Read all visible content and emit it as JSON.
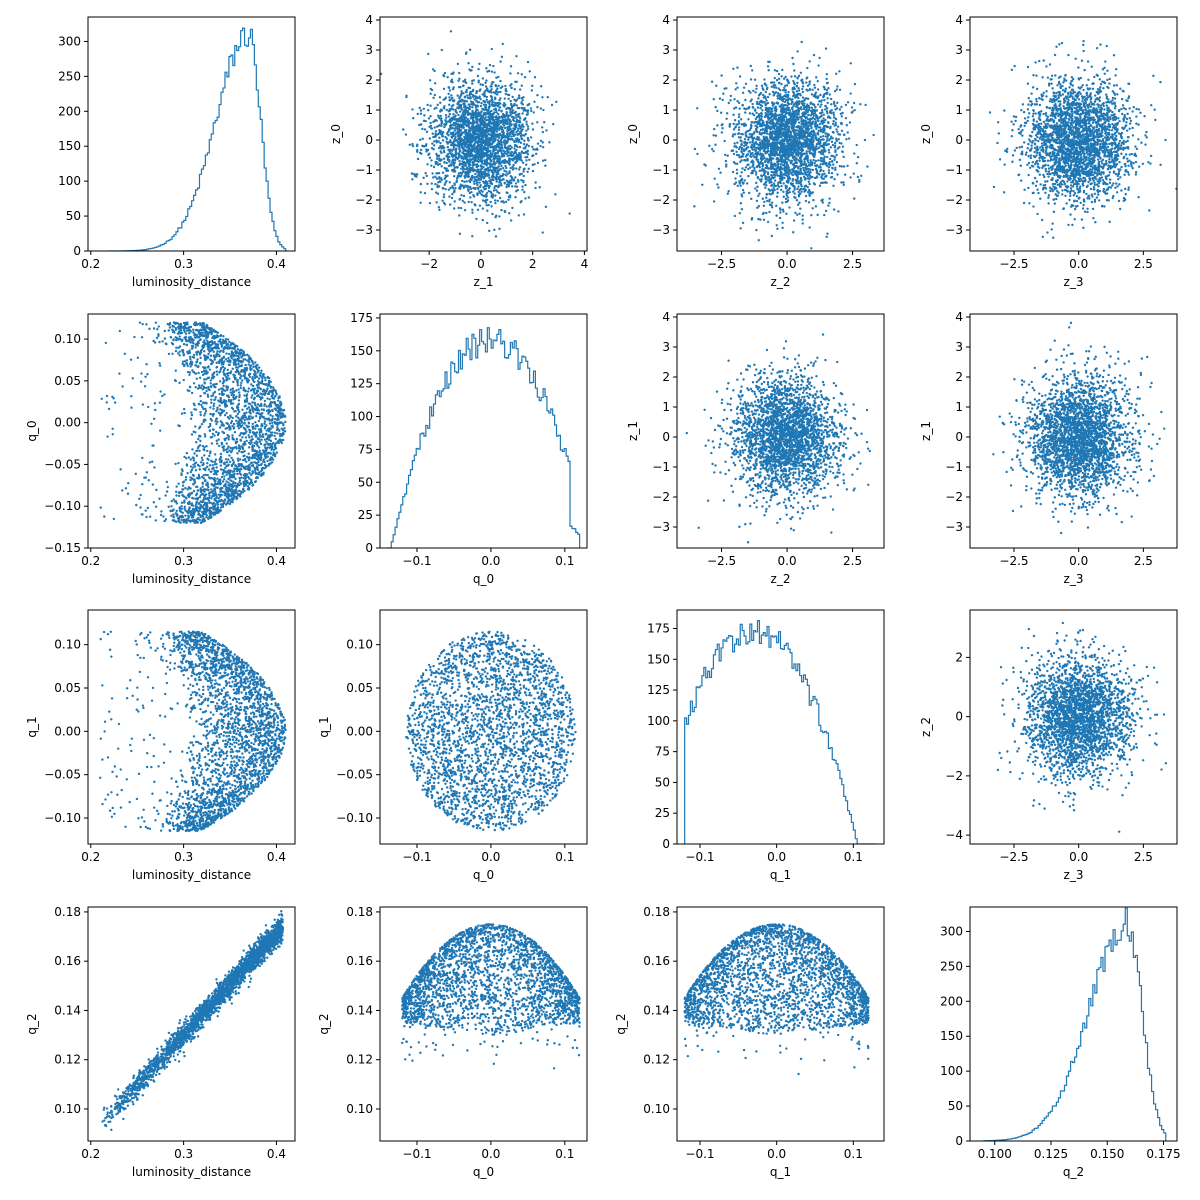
{
  "figure": {
    "color": "#1f77b4",
    "axes_color": "#000000",
    "background": "#ffffff"
  },
  "chart_data": [
    {
      "row": 0,
      "col": 0,
      "type": "histogram",
      "xlabel": "luminosity_distance",
      "ylabel": "",
      "xlim": [
        0.197,
        0.42
      ],
      "ylim": [
        0,
        335
      ],
      "xticks": [
        0.2,
        0.3,
        0.4
      ],
      "xtick_labels": [
        "0.2",
        "0.3",
        "0.4"
      ],
      "yticks": [
        0,
        50,
        100,
        150,
        200,
        250,
        300
      ],
      "ytick_labels": [
        "0",
        "50",
        "100",
        "150",
        "200",
        "250",
        "300"
      ],
      "dist": {
        "kind": "skew",
        "center": 0.37,
        "left_sd": 0.035,
        "right_sd": 0.013,
        "min": 0.22,
        "max": 0.41,
        "peak": 310,
        "bins": 90
      }
    },
    {
      "row": 0,
      "col": 1,
      "type": "scatter",
      "xlabel": "z_1",
      "ylabel": "z_0",
      "xlim": [
        -3.9,
        4.1
      ],
      "ylim": [
        -3.7,
        4.1
      ],
      "xticks": [
        -2,
        0,
        2,
        4
      ],
      "xtick_labels": [
        "−2",
        "0",
        "2",
        "4"
      ],
      "yticks": [
        -3,
        -2,
        -1,
        0,
        1,
        2,
        3,
        4
      ],
      "ytick_labels": [
        "−3",
        "−2",
        "−1",
        "0",
        "1",
        "2",
        "3",
        "4"
      ],
      "dist": {
        "kind": "gauss2d",
        "sx": 1,
        "sy": 1
      }
    },
    {
      "row": 0,
      "col": 2,
      "type": "scatter",
      "xlabel": "z_2",
      "ylabel": "z_0",
      "xlim": [
        -4.2,
        3.7
      ],
      "ylim": [
        -3.7,
        4.1
      ],
      "xticks": [
        -2.5,
        0,
        2.5
      ],
      "xtick_labels": [
        "−2.5",
        "0.0",
        "2.5"
      ],
      "yticks": [
        -3,
        -2,
        -1,
        0,
        1,
        2,
        3,
        4
      ],
      "ytick_labels": [
        "−3",
        "−2",
        "−1",
        "0",
        "1",
        "2",
        "3",
        "4"
      ],
      "dist": {
        "kind": "gauss2d",
        "sx": 1,
        "sy": 1
      }
    },
    {
      "row": 0,
      "col": 3,
      "type": "scatter",
      "xlabel": "z_3",
      "ylabel": "z_0",
      "xlim": [
        -4.2,
        3.8
      ],
      "ylim": [
        -3.7,
        4.1
      ],
      "xticks": [
        -2.5,
        0,
        2.5
      ],
      "xtick_labels": [
        "−2.5",
        "0.0",
        "2.5"
      ],
      "yticks": [
        -3,
        -2,
        -1,
        0,
        1,
        2,
        3,
        4
      ],
      "ytick_labels": [
        "−3",
        "−2",
        "−1",
        "0",
        "1",
        "2",
        "3",
        "4"
      ],
      "dist": {
        "kind": "gauss2d",
        "sx": 1,
        "sy": 1
      }
    },
    {
      "row": 1,
      "col": 0,
      "type": "scatter",
      "xlabel": "luminosity_distance",
      "ylabel": "q_0",
      "xlim": [
        0.197,
        0.42
      ],
      "ylim": [
        -0.15,
        0.13
      ],
      "xticks": [
        0.2,
        0.3,
        0.4
      ],
      "xtick_labels": [
        "0.2",
        "0.3",
        "0.4"
      ],
      "yticks": [
        -0.15,
        -0.1,
        -0.05,
        0.0,
        0.05,
        0.1
      ],
      "ytick_labels": [
        "−0.15",
        "−0.10",
        "−0.05",
        "0.00",
        "0.05",
        "0.10"
      ],
      "dist": {
        "kind": "crescent",
        "qmax": 0.12
      }
    },
    {
      "row": 1,
      "col": 1,
      "type": "histogram",
      "xlabel": "q_0",
      "ylabel": "",
      "xlim": [
        -0.15,
        0.13
      ],
      "ylim": [
        0,
        178
      ],
      "xticks": [
        -0.1,
        0.0,
        0.1
      ],
      "xtick_labels": [
        "−0.1",
        "0.0",
        "0.1"
      ],
      "yticks": [
        0,
        25,
        50,
        75,
        100,
        125,
        150,
        175
      ],
      "ytick_labels": [
        "0",
        "25",
        "50",
        "75",
        "100",
        "125",
        "150",
        "175"
      ],
      "dist": {
        "kind": "dome",
        "center": 0.0,
        "halfwidth": 0.125,
        "peak": 158,
        "min": -0.14,
        "max": 0.12,
        "bins": 100
      }
    },
    {
      "row": 1,
      "col": 2,
      "type": "scatter",
      "xlabel": "z_2",
      "ylabel": "z_1",
      "xlim": [
        -4.2,
        3.7
      ],
      "ylim": [
        -3.7,
        4.1
      ],
      "xticks": [
        -2.5,
        0,
        2.5
      ],
      "xtick_labels": [
        "−2.5",
        "0.0",
        "2.5"
      ],
      "yticks": [
        -3,
        -2,
        -1,
        0,
        1,
        2,
        3,
        4
      ],
      "ytick_labels": [
        "−3",
        "−2",
        "−1",
        "0",
        "1",
        "2",
        "3",
        "4"
      ],
      "dist": {
        "kind": "gauss2d",
        "sx": 1,
        "sy": 1
      }
    },
    {
      "row": 1,
      "col": 3,
      "type": "scatter",
      "xlabel": "z_3",
      "ylabel": "z_1",
      "xlim": [
        -4.2,
        3.8
      ],
      "ylim": [
        -3.7,
        4.1
      ],
      "xticks": [
        -2.5,
        0,
        2.5
      ],
      "xtick_labels": [
        "−2.5",
        "0.0",
        "2.5"
      ],
      "yticks": [
        -3,
        -2,
        -1,
        0,
        1,
        2,
        3,
        4
      ],
      "ytick_labels": [
        "−3",
        "−2",
        "−1",
        "0",
        "1",
        "2",
        "3",
        "4"
      ],
      "dist": {
        "kind": "gauss2d",
        "sx": 1,
        "sy": 1
      }
    },
    {
      "row": 2,
      "col": 0,
      "type": "scatter",
      "xlabel": "luminosity_distance",
      "ylabel": "q_1",
      "xlim": [
        0.197,
        0.42
      ],
      "ylim": [
        -0.13,
        0.14
      ],
      "xticks": [
        0.2,
        0.3,
        0.4
      ],
      "xtick_labels": [
        "0.2",
        "0.3",
        "0.4"
      ],
      "yticks": [
        -0.1,
        -0.05,
        0.0,
        0.05,
        0.1
      ],
      "ytick_labels": [
        "−0.10",
        "−0.05",
        "0.00",
        "0.05",
        "0.10"
      ],
      "dist": {
        "kind": "crescent",
        "qmax": 0.115
      }
    },
    {
      "row": 2,
      "col": 1,
      "type": "scatter",
      "xlabel": "q_0",
      "ylabel": "q_1",
      "xlim": [
        -0.15,
        0.13
      ],
      "ylim": [
        -0.13,
        0.14
      ],
      "xticks": [
        -0.1,
        0.0,
        0.1
      ],
      "xtick_labels": [
        "−0.1",
        "0.0",
        "0.1"
      ],
      "yticks": [
        -0.1,
        -0.05,
        0.0,
        0.05,
        0.1
      ],
      "ytick_labels": [
        "−0.10",
        "−0.05",
        "0.00",
        "0.05",
        "0.10"
      ],
      "dist": {
        "kind": "disk",
        "r": 0.115
      }
    },
    {
      "row": 2,
      "col": 2,
      "type": "histogram",
      "xlabel": "q_1",
      "ylabel": "",
      "xlim": [
        -0.13,
        0.14
      ],
      "ylim": [
        0,
        190
      ],
      "xticks": [
        -0.1,
        0.0,
        0.1
      ],
      "xtick_labels": [
        "−0.1",
        "0.0",
        "0.1"
      ],
      "yticks": [
        0,
        25,
        50,
        75,
        100,
        125,
        150,
        175
      ],
      "ytick_labels": [
        "0",
        "25",
        "50",
        "75",
        "100",
        "125",
        "150",
        "175"
      ],
      "dist": {
        "kind": "dome",
        "center": -0.03,
        "halfwidth": 0.125,
        "peak": 172,
        "min": -0.12,
        "max": 0.13,
        "bins": 100
      }
    },
    {
      "row": 2,
      "col": 3,
      "type": "scatter",
      "xlabel": "z_3",
      "ylabel": "z_2",
      "xlim": [
        -4.2,
        3.8
      ],
      "ylim": [
        -4.3,
        3.6
      ],
      "xticks": [
        -2.5,
        0,
        2.5
      ],
      "xtick_labels": [
        "−2.5",
        "0.0",
        "2.5"
      ],
      "yticks": [
        -4,
        -2,
        0,
        2
      ],
      "ytick_labels": [
        "−4",
        "−2",
        "0",
        "2"
      ],
      "dist": {
        "kind": "gauss2d",
        "sx": 1,
        "sy": 1
      }
    },
    {
      "row": 3,
      "col": 0,
      "type": "scatter",
      "xlabel": "luminosity_distance",
      "ylabel": "q_2",
      "xlim": [
        0.197,
        0.42
      ],
      "ylim": [
        0.087,
        0.182
      ],
      "xticks": [
        0.2,
        0.3,
        0.4
      ],
      "xtick_labels": [
        "0.2",
        "0.3",
        "0.4"
      ],
      "yticks": [
        0.1,
        0.12,
        0.14,
        0.16,
        0.18
      ],
      "ytick_labels": [
        "0.10",
        "0.12",
        "0.14",
        "0.16",
        "0.18"
      ],
      "dist": {
        "kind": "linear",
        "x0": 0.21,
        "y0": 0.093,
        "x1": 0.407,
        "y1": 0.174,
        "noise": 0.0025
      }
    },
    {
      "row": 3,
      "col": 1,
      "type": "scatter",
      "xlabel": "q_0",
      "ylabel": "q_2",
      "xlim": [
        -0.15,
        0.13
      ],
      "ylim": [
        0.087,
        0.182
      ],
      "xticks": [
        -0.1,
        0.0,
        0.1
      ],
      "xtick_labels": [
        "−0.1",
        "0.0",
        "0.1"
      ],
      "yticks": [
        0.1,
        0.12,
        0.14,
        0.16,
        0.18
      ],
      "ytick_labels": [
        "0.10",
        "0.12",
        "0.14",
        "0.16",
        "0.18"
      ],
      "dist": {
        "kind": "dome2d",
        "r": 0.12,
        "top": 0.175
      }
    },
    {
      "row": 3,
      "col": 2,
      "type": "scatter",
      "xlabel": "q_1",
      "ylabel": "q_2",
      "xlim": [
        -0.13,
        0.14
      ],
      "ylim": [
        0.087,
        0.182
      ],
      "xticks": [
        -0.1,
        0.0,
        0.1
      ],
      "xtick_labels": [
        "−0.1",
        "0.0",
        "0.1"
      ],
      "yticks": [
        0.1,
        0.12,
        0.14,
        0.16,
        0.18
      ],
      "ytick_labels": [
        "0.10",
        "0.12",
        "0.14",
        "0.16",
        "0.18"
      ],
      "dist": {
        "kind": "dome2d",
        "r": 0.12,
        "top": 0.175
      }
    },
    {
      "row": 3,
      "col": 3,
      "type": "histogram",
      "xlabel": "q_2",
      "ylabel": "",
      "xlim": [
        0.089,
        0.181
      ],
      "ylim": [
        0,
        335
      ],
      "xticks": [
        0.1,
        0.125,
        0.15,
        0.175
      ],
      "xtick_labels": [
        "0.100",
        "0.125",
        "0.150",
        "0.175"
      ],
      "yticks": [
        0,
        50,
        100,
        150,
        200,
        250,
        300
      ],
      "ytick_labels": [
        "0",
        "50",
        "100",
        "150",
        "200",
        "250",
        "300"
      ],
      "dist": {
        "kind": "skew",
        "center": 0.159,
        "left_sd": 0.017,
        "right_sd": 0.0065,
        "min": 0.095,
        "max": 0.176,
        "peak": 312,
        "bins": 90
      }
    }
  ]
}
